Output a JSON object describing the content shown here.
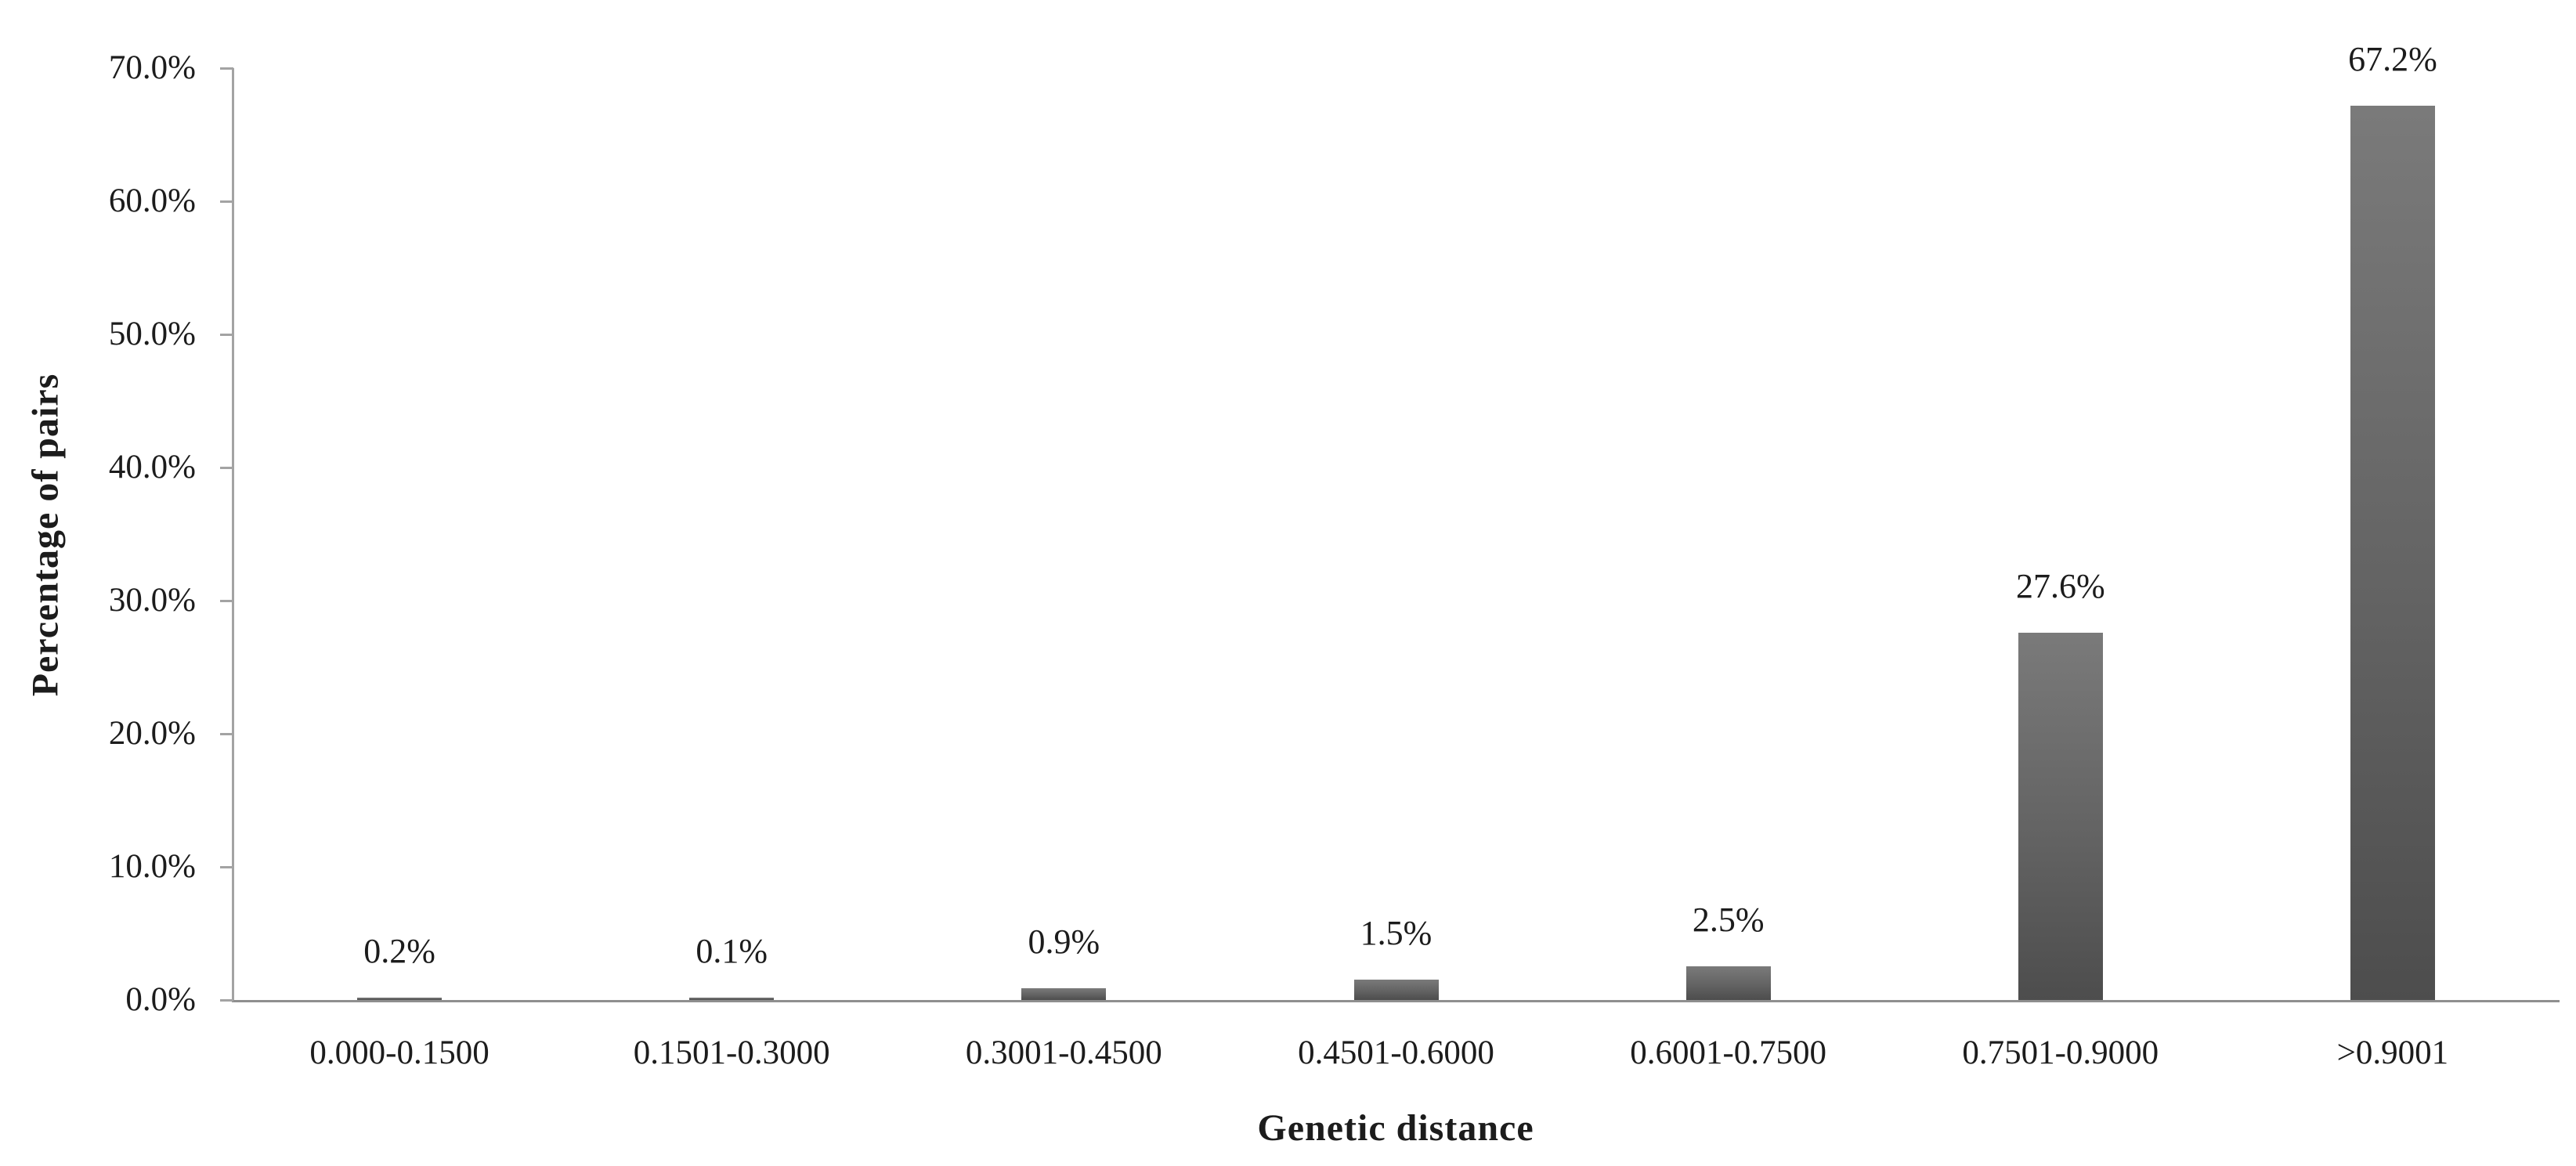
{
  "chart_data": {
    "type": "bar",
    "title": "",
    "xlabel": "Genetic distance",
    "ylabel": "Percentage of pairs",
    "categories": [
      "0.000-0.1500",
      "0.1501-0.3000",
      "0.3001-0.4500",
      "0.4501-0.6000",
      "0.6001-0.7500",
      "0.7501-0.9000",
      ">0.9001"
    ],
    "values": [
      0.2,
      0.1,
      0.9,
      1.5,
      2.5,
      27.6,
      67.2
    ],
    "data_labels": [
      "0.2%",
      "0.1%",
      "0.9%",
      "1.5%",
      "2.5%",
      "27.6%",
      "67.2%"
    ],
    "y_ticks": [
      {
        "value": 0,
        "label": "0.0%"
      },
      {
        "value": 10,
        "label": "10.0%"
      },
      {
        "value": 20,
        "label": "20.0%"
      },
      {
        "value": 30,
        "label": "30.0%"
      },
      {
        "value": 40,
        "label": "40.0%"
      },
      {
        "value": 50,
        "label": "50.0%"
      },
      {
        "value": 60,
        "label": "60.0%"
      },
      {
        "value": 70,
        "label": "70.0%"
      }
    ],
    "ylim": [
      0,
      70
    ],
    "grid": false,
    "legend": "none",
    "colors": {
      "bar_top": "#7a7a7a",
      "bar_bottom": "#4d4d4d",
      "axis_line": "#9b9b9b",
      "text": "#1c1c1c"
    }
  }
}
